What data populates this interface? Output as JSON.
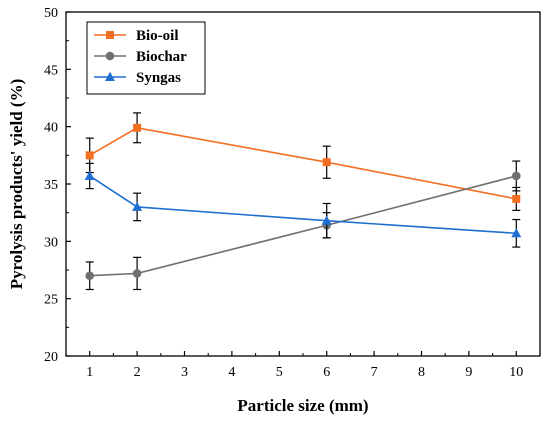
{
  "chart_data": {
    "type": "line",
    "xlabel": "Particle size (mm)",
    "ylabel": "Pyrolysis products' yield (%)",
    "xlim": [
      0.5,
      10.5
    ],
    "ylim": [
      20,
      50
    ],
    "xticks": [
      1,
      2,
      3,
      4,
      5,
      6,
      7,
      8,
      9,
      10
    ],
    "yticks": [
      20,
      25,
      30,
      35,
      40,
      45,
      50
    ],
    "grid": false,
    "legend_position": "top-left",
    "series": [
      {
        "name": "Bio-oil",
        "color": "#f36f21",
        "marker": "square",
        "x": [
          1,
          2,
          6,
          10
        ],
        "y": [
          37.5,
          39.9,
          36.9,
          33.7
        ],
        "error": [
          1.5,
          1.3,
          1.4,
          1.0
        ]
      },
      {
        "name": "Biochar",
        "color": "#707070",
        "marker": "circle",
        "x": [
          1,
          2,
          6,
          10
        ],
        "y": [
          27.0,
          27.2,
          31.4,
          35.7
        ],
        "error": [
          1.2,
          1.4,
          1.1,
          1.3
        ]
      },
      {
        "name": "Syngas",
        "color": "#1f6fd1",
        "marker": "triangle",
        "x": [
          1,
          2,
          6,
          10
        ],
        "y": [
          35.7,
          33.0,
          31.8,
          30.7
        ],
        "error": [
          1.1,
          1.2,
          1.5,
          1.2
        ]
      }
    ]
  }
}
